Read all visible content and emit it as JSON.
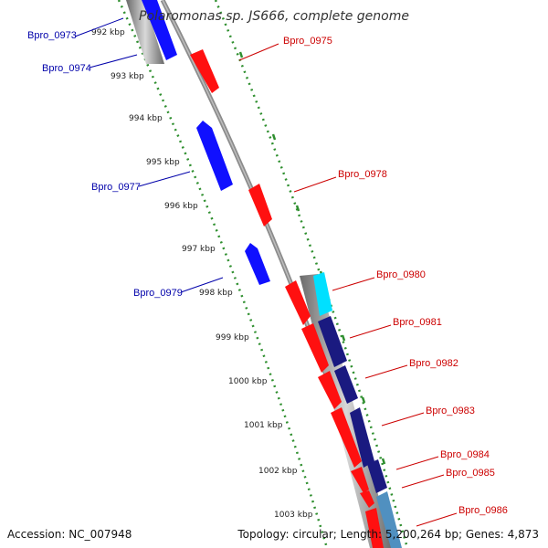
{
  "title": "Polaromonas sp. JS666, complete genome",
  "footer": {
    "accession": "Accession: NC_007948",
    "topology": "Topology: circular; Length: 5,200,264 bp; Genes: 4,873"
  },
  "colors": {
    "forward_gene": "#ff1010",
    "reverse_gene": "#1010ff",
    "label_forward": "#cc0000",
    "label_reverse": "#0000aa",
    "backbone": "#8c8c8c",
    "dotted_guides": "#2f8f2f",
    "gc_skew_dark": "#1a1a80",
    "gc_skew_light": "#5090c0",
    "gc_skew_cyan": "#00e0ff"
  },
  "tick_labels": [
    "992 kbp",
    "993 kbp",
    "994 kbp",
    "995 kbp",
    "996 kbp",
    "997 kbp",
    "998 kbp",
    "999 kbp",
    "1000 kbp",
    "1001 kbp",
    "1002 kbp",
    "1003 kbp"
  ],
  "genes": [
    {
      "label": "Bpro_0973",
      "strand": "reverse"
    },
    {
      "label": "Bpro_0974",
      "strand": "reverse"
    },
    {
      "label": "Bpro_0975",
      "strand": "forward"
    },
    {
      "label": "Bpro_0977",
      "strand": "reverse"
    },
    {
      "label": "Bpro_0978",
      "strand": "forward"
    },
    {
      "label": "Bpro_0979",
      "strand": "reverse"
    },
    {
      "label": "Bpro_0980",
      "strand": "forward"
    },
    {
      "label": "Bpro_0981",
      "strand": "forward"
    },
    {
      "label": "Bpro_0982",
      "strand": "forward"
    },
    {
      "label": "Bpro_0983",
      "strand": "forward"
    },
    {
      "label": "Bpro_0984",
      "strand": "forward"
    },
    {
      "label": "Bpro_0985",
      "strand": "forward"
    },
    {
      "label": "Bpro_0986",
      "strand": "forward"
    }
  ]
}
